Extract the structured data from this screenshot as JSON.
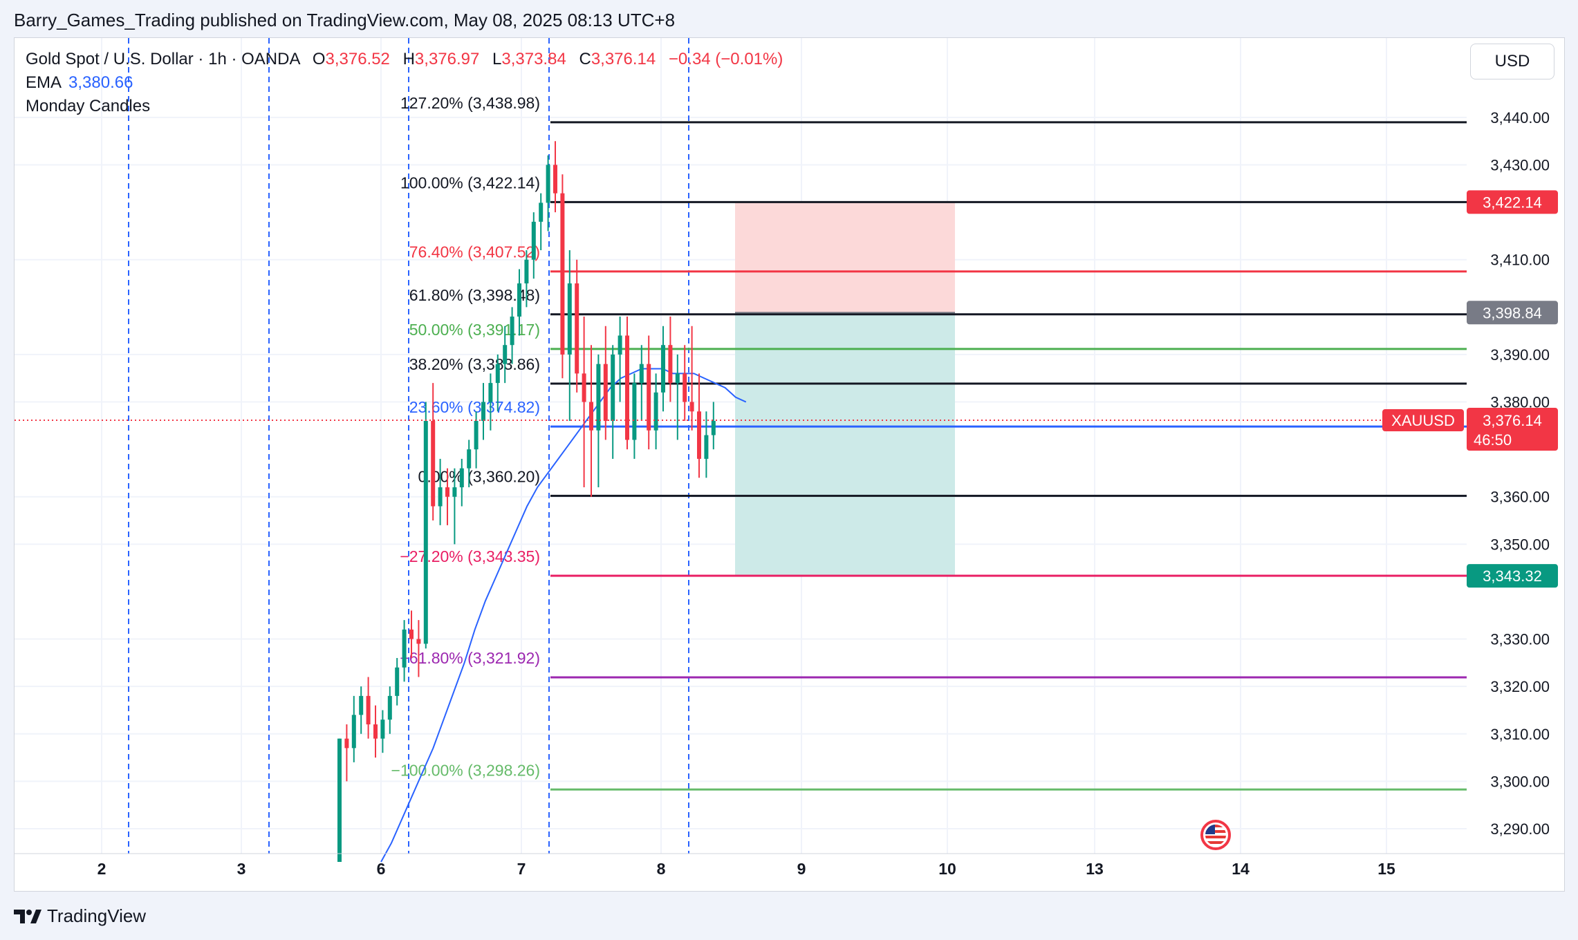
{
  "publisher": "Barry_Games_Trading published on TradingView.com, May 08, 2025 08:13 UTC+8",
  "footer": {
    "brand": "TradingView"
  },
  "currency": "USD",
  "legend": {
    "symbol_line": "Gold Spot / U.S. Dollar · 1h · OANDA",
    "o_label": "O",
    "o_value": "3,376.52",
    "h_label": "H",
    "h_value": "3,376.97",
    "l_label": "L",
    "l_value": "3,373.84",
    "c_label": "C",
    "c_value": "3,376.14",
    "change": "−0.34 (−0.01%)",
    "ema_label": "EMA",
    "ema_value": "3,380.66",
    "indicator2": "Monday Candles"
  },
  "colors": {
    "up": "#089981",
    "down": "#f23645",
    "ema": "#2962ff",
    "stop_zone": "#fcd9d9",
    "target_zone": "#cdeae8",
    "gray_tag": "#787b86",
    "teal_tag": "#089981"
  },
  "chart_data": {
    "type": "candlestick",
    "symbol": "XAUUSD",
    "timeframe": "1h",
    "ylim": [
      3283,
      3455
    ],
    "y_ticks": [
      "3,440.00",
      "3,430.00",
      "3,410.00",
      "3,390.00",
      "3,380.00",
      "3,360.00",
      "3,350.00",
      "3,330.00",
      "3,320.00",
      "3,310.00",
      "3,300.00",
      "3,290.00"
    ],
    "y_tick_values": [
      3440,
      3430,
      3410,
      3390,
      3380,
      3360,
      3350,
      3330,
      3320,
      3310,
      3300,
      3290
    ],
    "x_ticks": [
      "2",
      "3",
      "6",
      "7",
      "8",
      "9",
      "10",
      "13",
      "14",
      "15"
    ],
    "session_markers": [
      "May 2",
      "May 3",
      "May 6",
      "May 7",
      "May 8"
    ],
    "fib_levels": [
      {
        "label": "127.20% (3,438.98)",
        "level": 3438.98,
        "color": "#131722"
      },
      {
        "label": "100.00% (3,422.14)",
        "level": 3422.14,
        "color": "#131722"
      },
      {
        "label": "76.40% (3,407.52)",
        "level": 3407.52,
        "color": "#f23645"
      },
      {
        "label": "61.80% (3,398.48)",
        "level": 3398.48,
        "color": "#131722"
      },
      {
        "label": "50.00% (3,391.17)",
        "level": 3391.17,
        "color": "#4caf50"
      },
      {
        "label": "38.20% (3,383.86)",
        "level": 3383.86,
        "color": "#131722"
      },
      {
        "label": "23.60% (3,374.82)",
        "level": 3374.82,
        "color": "#2962ff"
      },
      {
        "label": "0.00% (3,360.20)",
        "level": 3360.2,
        "color": "#131722"
      },
      {
        "label": "−27.20% (3,343.35)",
        "level": 3343.35,
        "color": "#e91e63"
      },
      {
        "label": "−61.80% (3,321.92)",
        "level": 3321.92,
        "color": "#9c27b0"
      },
      {
        "label": "−100.00% (3,298.26)",
        "level": 3298.26,
        "color": "#66bb6a"
      }
    ],
    "position": {
      "stop": 3422.14,
      "entry": 3398.84,
      "target": 3343.32
    },
    "price_tags": [
      {
        "text": "3,422.14",
        "level": 3422.14,
        "color": "#f23645"
      },
      {
        "text": "3,398.84",
        "level": 3398.84,
        "color": "#787b86"
      },
      {
        "text": "3,343.32",
        "level": 3343.32,
        "color": "#089981"
      }
    ],
    "last_price": {
      "symbol": "XAUUSD",
      "price": "3,376.14",
      "level": 3376.14,
      "countdown": "46:50"
    },
    "candles": [
      [
        3283,
        3309,
        3283,
        3309
      ],
      [
        3309,
        3312,
        3300,
        3307
      ],
      [
        3307,
        3318,
        3304,
        3314
      ],
      [
        3314,
        3320,
        3310,
        3318
      ],
      [
        3318,
        3322,
        3309,
        3312
      ],
      [
        3312,
        3316,
        3305,
        3309
      ],
      [
        3309,
        3315,
        3306,
        3313
      ],
      [
        3313,
        3320,
        3310,
        3318
      ],
      [
        3318,
        3326,
        3316,
        3324
      ],
      [
        3324,
        3334,
        3321,
        3332
      ],
      [
        3332,
        3336,
        3326,
        3330
      ],
      [
        3330,
        3334,
        3322,
        3329
      ],
      [
        3329,
        3380,
        3328,
        3376
      ],
      [
        3376,
        3384,
        3355,
        3358
      ],
      [
        3358,
        3368,
        3354,
        3362
      ],
      [
        3362,
        3366,
        3354,
        3360
      ],
      [
        3360,
        3366,
        3350,
        3362
      ],
      [
        3362,
        3368,
        3358,
        3366
      ],
      [
        3366,
        3372,
        3362,
        3370
      ],
      [
        3370,
        3378,
        3366,
        3376
      ],
      [
        3376,
        3384,
        3372,
        3380
      ],
      [
        3380,
        3386,
        3374,
        3384
      ],
      [
        3384,
        3390,
        3378,
        3388
      ],
      [
        3388,
        3396,
        3384,
        3392
      ],
      [
        3392,
        3400,
        3388,
        3398
      ],
      [
        3398,
        3408,
        3394,
        3405
      ],
      [
        3405,
        3412,
        3400,
        3410
      ],
      [
        3410,
        3420,
        3406,
        3418
      ],
      [
        3418,
        3424,
        3412,
        3422
      ],
      [
        3422,
        3432,
        3416,
        3430
      ],
      [
        3430,
        3435,
        3420,
        3424
      ],
      [
        3424,
        3428,
        3385,
        3390
      ],
      [
        3390,
        3412,
        3376,
        3405
      ],
      [
        3405,
        3410,
        3382,
        3386
      ],
      [
        3386,
        3398,
        3362,
        3380
      ],
      [
        3380,
        3392,
        3360,
        3374
      ],
      [
        3374,
        3390,
        3362,
        3388
      ],
      [
        3388,
        3396,
        3372,
        3376
      ],
      [
        3376,
        3392,
        3368,
        3390
      ],
      [
        3390,
        3398,
        3380,
        3394
      ],
      [
        3394,
        3398,
        3370,
        3372
      ],
      [
        3372,
        3386,
        3368,
        3384
      ],
      [
        3384,
        3392,
        3376,
        3388
      ],
      [
        3388,
        3394,
        3370,
        3374
      ],
      [
        3374,
        3386,
        3370,
        3382
      ],
      [
        3382,
        3396,
        3378,
        3392
      ],
      [
        3392,
        3398,
        3380,
        3384
      ],
      [
        3384,
        3390,
        3372,
        3386
      ],
      [
        3386,
        3392,
        3376,
        3380
      ],
      [
        3380,
        3396,
        3374,
        3378
      ],
      [
        3378,
        3386,
        3364,
        3368
      ],
      [
        3368,
        3378,
        3364,
        3373
      ],
      [
        3373,
        3380,
        3370,
        3376
      ]
    ],
    "ema": [
      3283,
      3287,
      3292,
      3297,
      3302,
      3307,
      3313,
      3319,
      3325,
      3332,
      3338,
      3343,
      3348,
      3353,
      3358,
      3362,
      3365,
      3368,
      3371,
      3374,
      3377,
      3380,
      3383,
      3385,
      3386,
      3387,
      3387,
      3387,
      3386,
      3386,
      3386,
      3385,
      3384,
      3383,
      3381,
      3380
    ]
  }
}
